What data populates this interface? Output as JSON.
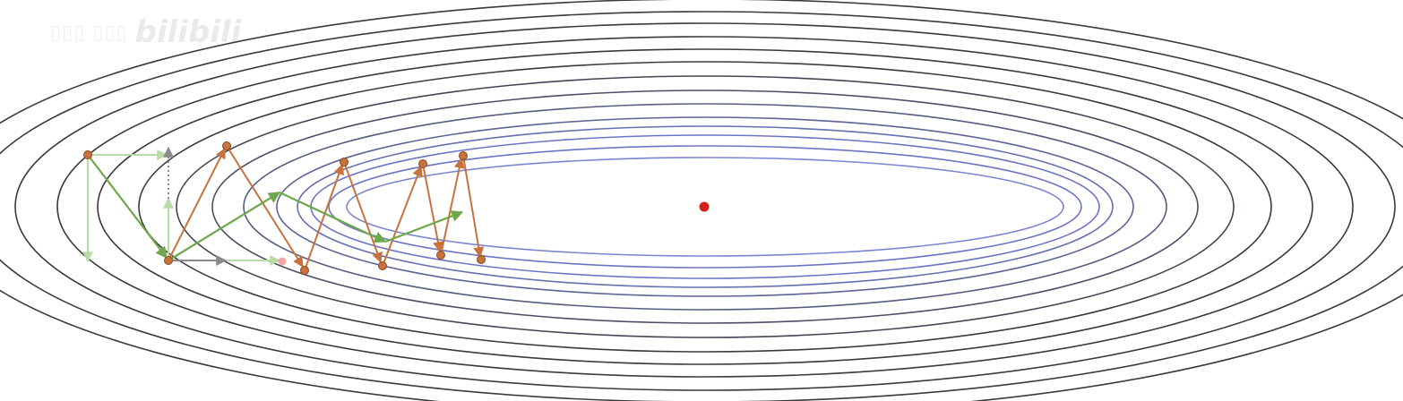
{
  "watermark": {
    "logo": "bilibili"
  },
  "colors": {
    "outer_contour": "#3a3a3a",
    "inner_contour": "#6b75c4",
    "sgd_path": "#c8733e",
    "sgd_point": "#c8733e",
    "momentum_path": "#6fa84a",
    "component_light_green": "#b9dca6",
    "component_grey": "#8a8a8a",
    "minimum": "#d62020",
    "faint_marker": "#f08a8a"
  },
  "diagram": {
    "type": "optimization-contour",
    "icons": [
      "minimum-point",
      "sgd-oscillating-path",
      "momentum-path",
      "gradient-component-arrows"
    ]
  }
}
